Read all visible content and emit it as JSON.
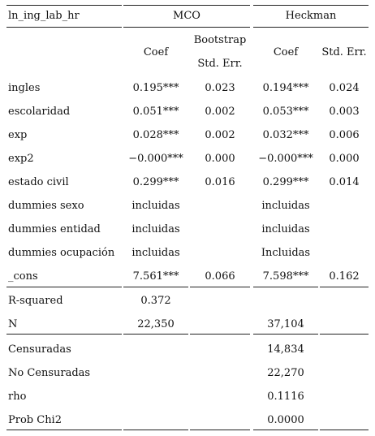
{
  "table": {
    "header": {
      "depvar": "ln_ing_lab_hr",
      "group1": "MCO",
      "group2": "Heckman",
      "coef1": "Coef",
      "se1_line1": "Bootstrap",
      "se1_line2": "Std. Err.",
      "coef2": "Coef",
      "se2": "Std. Err."
    },
    "rows": [
      {
        "label": "ingles",
        "mco_coef": "0.195***",
        "mco_se": "0.023",
        "heck_coef": "0.194***",
        "heck_se": "0.024"
      },
      {
        "label": "escolaridad",
        "mco_coef": "0.051***",
        "mco_se": "0.002",
        "heck_coef": "0.053***",
        "heck_se": "0.003"
      },
      {
        "label": "exp",
        "mco_coef": "0.028***",
        "mco_se": "0.002",
        "heck_coef": "0.032***",
        "heck_se": "0.006"
      },
      {
        "label": "exp2",
        "mco_coef": "−0.000***",
        "mco_se": "0.000",
        "heck_coef": "−0.000***",
        "heck_se": "0.000"
      },
      {
        "label": "estado civil",
        "mco_coef": "0.299***",
        "mco_se": "0.016",
        "heck_coef": "0.299***",
        "heck_se": "0.014"
      },
      {
        "label": "dummies sexo",
        "mco_coef": "incluidas",
        "mco_se": "",
        "heck_coef": "incluidas",
        "heck_se": ""
      },
      {
        "label": "dummies entidad",
        "mco_coef": "incluidas",
        "mco_se": "",
        "heck_coef": "incluidas",
        "heck_se": ""
      },
      {
        "label": "dummies ocupación",
        "mco_coef": "incluidas",
        "mco_se": "",
        "heck_coef": "Incluidas",
        "heck_se": ""
      },
      {
        "label": "_cons",
        "mco_coef": "7.561***",
        "mco_se": "0.066",
        "heck_coef": "7.598***",
        "heck_se": "0.162"
      }
    ],
    "stats": [
      {
        "label": "R-squared",
        "mco": "0.372",
        "heck": ""
      },
      {
        "label": "N",
        "mco": "22,350",
        "heck": "37,104"
      }
    ],
    "extra": [
      {
        "label": "Censuradas",
        "heck": "14,834"
      },
      {
        "label": "No Censuradas",
        "heck": "22,270"
      },
      {
        "label": "rho",
        "heck": "0.1116"
      },
      {
        "label": "Prob Chi2",
        "heck": "0.0000"
      }
    ]
  }
}
